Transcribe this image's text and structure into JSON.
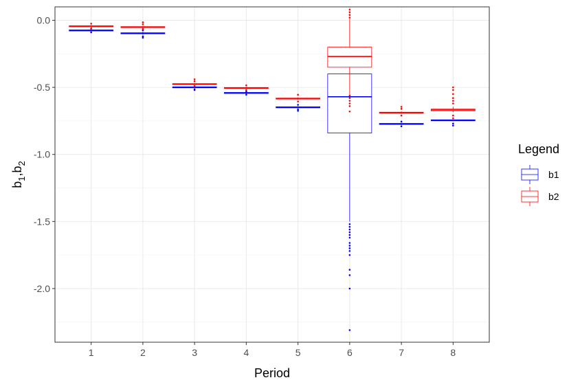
{
  "chart_data": {
    "type": "boxplot",
    "xlabel": "Period",
    "ylabel": {
      "base": "b",
      "sub1": "1",
      "sep": ",",
      "sub2": "2"
    },
    "categories": [
      "1",
      "2",
      "3",
      "4",
      "5",
      "6",
      "7",
      "8"
    ],
    "yticks": [
      "0.0",
      "-0.5",
      "-1.0",
      "-1.5",
      "-2.0"
    ],
    "ytick_values": [
      0.0,
      -0.5,
      -1.0,
      -1.5,
      -2.0
    ],
    "ylim": [
      -2.4,
      0.1
    ],
    "grid": true,
    "legend": {
      "title": "Legend",
      "position": "right",
      "entries": [
        {
          "label": "b1",
          "color": "#0000ff"
        },
        {
          "label": "b2",
          "color": "#ff0000"
        }
      ]
    },
    "series": [
      {
        "name": "b1",
        "color": "#0000ff",
        "boxes": [
          {
            "x": "1",
            "q1": -0.078,
            "median": -0.075,
            "q3": -0.072,
            "lower": -0.083,
            "upper": -0.067,
            "outliers": [
              -0.09,
              -0.062
            ]
          },
          {
            "x": "2",
            "q1": -0.101,
            "median": -0.097,
            "q3": -0.093,
            "lower": -0.108,
            "upper": -0.086,
            "outliers": [
              -0.12,
              -0.13,
              -0.075
            ]
          },
          {
            "x": "3",
            "q1": -0.502,
            "median": -0.499,
            "q3": -0.496,
            "lower": -0.507,
            "upper": -0.491,
            "outliers": [
              -0.515,
              -0.52
            ]
          },
          {
            "x": "4",
            "q1": -0.544,
            "median": -0.541,
            "q3": -0.538,
            "lower": -0.549,
            "upper": -0.533,
            "outliers": [
              -0.555,
              -0.53
            ]
          },
          {
            "x": "5",
            "q1": -0.651,
            "median": -0.648,
            "q3": -0.645,
            "lower": -0.656,
            "upper": -0.64,
            "outliers": [
              -0.665,
              -0.675,
              -0.63
            ]
          },
          {
            "x": "6",
            "q1": -0.84,
            "median": -0.57,
            "q3": -0.4,
            "lower": -1.5,
            "upper": -0.4,
            "outliers": [
              -1.52,
              -1.54,
              -1.56,
              -1.58,
              -1.6,
              -1.62,
              -1.66,
              -1.68,
              -1.7,
              -1.72,
              -1.75,
              -1.86,
              -1.9,
              -2.0,
              -2.31
            ]
          },
          {
            "x": "7",
            "q1": -0.775,
            "median": -0.772,
            "q3": -0.769,
            "lower": -0.78,
            "upper": -0.764,
            "outliers": [
              -0.79,
              -0.755
            ]
          },
          {
            "x": "8",
            "q1": -0.748,
            "median": -0.745,
            "q3": -0.742,
            "lower": -0.752,
            "upper": -0.738,
            "outliers": [
              -0.77,
              -0.785
            ]
          }
        ]
      },
      {
        "name": "b2",
        "color": "#ff0000",
        "boxes": [
          {
            "x": "1",
            "q1": -0.047,
            "median": -0.044,
            "q3": -0.041,
            "lower": -0.052,
            "upper": -0.036,
            "outliers": [
              -0.025,
              -0.06
            ]
          },
          {
            "x": "2",
            "q1": -0.053,
            "median": -0.05,
            "q3": -0.047,
            "lower": -0.058,
            "upper": -0.042,
            "outliers": [
              -0.015,
              -0.03,
              -0.065
            ]
          },
          {
            "x": "3",
            "q1": -0.478,
            "median": -0.475,
            "q3": -0.472,
            "lower": -0.483,
            "upper": -0.467,
            "outliers": [
              -0.44,
              -0.455,
              -0.49
            ]
          },
          {
            "x": "4",
            "q1": -0.507,
            "median": -0.504,
            "q3": -0.501,
            "lower": -0.512,
            "upper": -0.496,
            "outliers": [
              -0.485,
              -0.52
            ]
          },
          {
            "x": "5",
            "q1": -0.586,
            "median": -0.583,
            "q3": -0.58,
            "lower": -0.591,
            "upper": -0.575,
            "outliers": [
              -0.555,
              -0.605
            ]
          },
          {
            "x": "6",
            "q1": -0.35,
            "median": -0.27,
            "q3": -0.2,
            "lower": -0.55,
            "upper": 0.01,
            "outliers": [
              0.02,
              0.04,
              0.06,
              0.08,
              -0.56,
              -0.58,
              -0.6,
              -0.62,
              -0.64,
              -0.68
            ]
          },
          {
            "x": "7",
            "q1": -0.691,
            "median": -0.688,
            "q3": -0.685,
            "lower": -0.696,
            "upper": -0.68,
            "outliers": [
              -0.645,
              -0.66,
              -0.71
            ]
          },
          {
            "x": "8",
            "q1": -0.675,
            "median": -0.668,
            "q3": -0.662,
            "lower": -0.685,
            "upper": -0.645,
            "outliers": [
              -0.5,
              -0.52,
              -0.55,
              -0.58,
              -0.6,
              -0.62,
              -0.71,
              -0.73
            ]
          }
        ]
      }
    ]
  }
}
